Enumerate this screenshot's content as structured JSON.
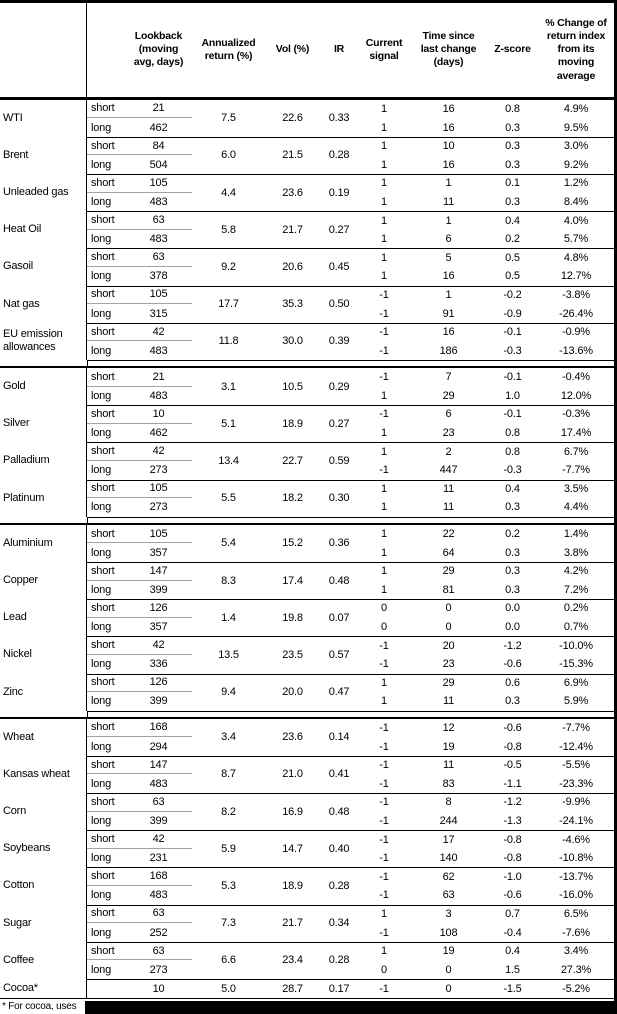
{
  "colors": {
    "rule": "#000000",
    "sub_rule": "#a3a3a3",
    "redaction_bar": "#000000",
    "text": "#000000",
    "background": "#ffffff"
  },
  "table": {
    "columns": [
      {
        "id": "lookback",
        "label": "Lookback\n(moving\navg, days)"
      },
      {
        "id": "annualized",
        "label": "Annualized\nreturn (%)"
      },
      {
        "id": "vol",
        "label": "Vol (%)"
      },
      {
        "id": "ir",
        "label": "IR"
      },
      {
        "id": "signal",
        "label": "Current\nsignal"
      },
      {
        "id": "time_since",
        "label": "Time since\nlast change\n(days)"
      },
      {
        "id": "z_score",
        "label": "Z-score"
      },
      {
        "id": "pct_change",
        "label": "% Change of\nreturn index\nfrom its\nmoving\naverage"
      }
    ],
    "sections": [
      {
        "name": "energy",
        "groups": [
          {
            "name": "WTI",
            "annualized": "7.5",
            "vol": "22.6",
            "ir": "0.33",
            "rows": [
              {
                "label": "short",
                "lookback": "21",
                "signal": "1",
                "time_since": "16",
                "z_score": "0.8",
                "pct_change": "4.9%"
              },
              {
                "label": "long",
                "lookback": "462",
                "signal": "1",
                "time_since": "16",
                "z_score": "0.3",
                "pct_change": "9.5%"
              }
            ]
          },
          {
            "name": "Brent",
            "annualized": "6.0",
            "vol": "21.5",
            "ir": "0.28",
            "rows": [
              {
                "label": "short",
                "lookback": "84",
                "signal": "1",
                "time_since": "10",
                "z_score": "0.3",
                "pct_change": "3.0%"
              },
              {
                "label": "long",
                "lookback": "504",
                "signal": "1",
                "time_since": "16",
                "z_score": "0.3",
                "pct_change": "9.2%"
              }
            ]
          },
          {
            "name": "Unleaded gas",
            "annualized": "4.4",
            "vol": "23.6",
            "ir": "0.19",
            "rows": [
              {
                "label": "short",
                "lookback": "105",
                "signal": "1",
                "time_since": "1",
                "z_score": "0.1",
                "pct_change": "1.2%"
              },
              {
                "label": "long",
                "lookback": "483",
                "signal": "1",
                "time_since": "11",
                "z_score": "0.3",
                "pct_change": "8.4%"
              }
            ]
          },
          {
            "name": "Heat Oil",
            "annualized": "5.8",
            "vol": "21.7",
            "ir": "0.27",
            "rows": [
              {
                "label": "short",
                "lookback": "63",
                "signal": "1",
                "time_since": "1",
                "z_score": "0.4",
                "pct_change": "4.0%"
              },
              {
                "label": "long",
                "lookback": "483",
                "signal": "1",
                "time_since": "6",
                "z_score": "0.2",
                "pct_change": "5.7%"
              }
            ]
          },
          {
            "name": "Gasoil",
            "annualized": "9.2",
            "vol": "20.6",
            "ir": "0.45",
            "rows": [
              {
                "label": "short",
                "lookback": "63",
                "signal": "1",
                "time_since": "5",
                "z_score": "0.5",
                "pct_change": "4.8%"
              },
              {
                "label": "long",
                "lookback": "378",
                "signal": "1",
                "time_since": "16",
                "z_score": "0.5",
                "pct_change": "12.7%"
              }
            ]
          },
          {
            "name": "Nat gas",
            "annualized": "17.7",
            "vol": "35.3",
            "ir": "0.50",
            "rows": [
              {
                "label": "short",
                "lookback": "105",
                "signal": "-1",
                "time_since": "1",
                "z_score": "-0.2",
                "pct_change": "-3.8%"
              },
              {
                "label": "long",
                "lookback": "315",
                "signal": "-1",
                "time_since": "91",
                "z_score": "-0.9",
                "pct_change": "-26.4%"
              }
            ]
          },
          {
            "name": "EU emission allowances",
            "annualized": "11.8",
            "vol": "30.0",
            "ir": "0.39",
            "rows": [
              {
                "label": "short",
                "lookback": "42",
                "signal": "-1",
                "time_since": "16",
                "z_score": "-0.1",
                "pct_change": "-0.9%"
              },
              {
                "label": "long",
                "lookback": "483",
                "signal": "-1",
                "time_since": "186",
                "z_score": "-0.3",
                "pct_change": "-13.6%"
              }
            ]
          }
        ]
      },
      {
        "name": "precious-metals",
        "groups": [
          {
            "name": "Gold",
            "annualized": "3.1",
            "vol": "10.5",
            "ir": "0.29",
            "rows": [
              {
                "label": "short",
                "lookback": "21",
                "signal": "-1",
                "time_since": "7",
                "z_score": "-0.1",
                "pct_change": "-0.4%"
              },
              {
                "label": "long",
                "lookback": "483",
                "signal": "1",
                "time_since": "29",
                "z_score": "1.0",
                "pct_change": "12.0%"
              }
            ]
          },
          {
            "name": "Silver",
            "annualized": "5.1",
            "vol": "18.9",
            "ir": "0.27",
            "rows": [
              {
                "label": "short",
                "lookback": "10",
                "signal": "-1",
                "time_since": "6",
                "z_score": "-0.1",
                "pct_change": "-0.3%"
              },
              {
                "label": "long",
                "lookback": "462",
                "signal": "1",
                "time_since": "23",
                "z_score": "0.8",
                "pct_change": "17.4%"
              }
            ]
          },
          {
            "name": "Palladium",
            "annualized": "13.4",
            "vol": "22.7",
            "ir": "0.59",
            "rows": [
              {
                "label": "short",
                "lookback": "42",
                "signal": "1",
                "time_since": "2",
                "z_score": "0.8",
                "pct_change": "6.7%"
              },
              {
                "label": "long",
                "lookback": "273",
                "signal": "-1",
                "time_since": "447",
                "z_score": "-0.3",
                "pct_change": "-7.7%"
              }
            ]
          },
          {
            "name": "Platinum",
            "annualized": "5.5",
            "vol": "18.2",
            "ir": "0.30",
            "rows": [
              {
                "label": "short",
                "lookback": "105",
                "signal": "1",
                "time_since": "11",
                "z_score": "0.4",
                "pct_change": "3.5%"
              },
              {
                "label": "long",
                "lookback": "273",
                "signal": "1",
                "time_since": "11",
                "z_score": "0.3",
                "pct_change": "4.4%"
              }
            ]
          }
        ]
      },
      {
        "name": "base-metals",
        "groups": [
          {
            "name": "Aluminium",
            "annualized": "5.4",
            "vol": "15.2",
            "ir": "0.36",
            "rows": [
              {
                "label": "short",
                "lookback": "105",
                "signal": "1",
                "time_since": "22",
                "z_score": "0.2",
                "pct_change": "1.4%"
              },
              {
                "label": "long",
                "lookback": "357",
                "signal": "1",
                "time_since": "64",
                "z_score": "0.3",
                "pct_change": "3.8%"
              }
            ]
          },
          {
            "name": "Copper",
            "annualized": "8.3",
            "vol": "17.4",
            "ir": "0.48",
            "rows": [
              {
                "label": "short",
                "lookback": "147",
                "signal": "1",
                "time_since": "29",
                "z_score": "0.3",
                "pct_change": "4.2%"
              },
              {
                "label": "long",
                "lookback": "399",
                "signal": "1",
                "time_since": "81",
                "z_score": "0.3",
                "pct_change": "7.2%"
              }
            ]
          },
          {
            "name": "Lead",
            "annualized": "1.4",
            "vol": "19.8",
            "ir": "0.07",
            "rows": [
              {
                "label": "short",
                "lookback": "126",
                "signal": "0",
                "time_since": "0",
                "z_score": "0.0",
                "pct_change": "0.2%"
              },
              {
                "label": "long",
                "lookback": "357",
                "signal": "0",
                "time_since": "0",
                "z_score": "0.0",
                "pct_change": "0.7%"
              }
            ]
          },
          {
            "name": "Nickel",
            "annualized": "13.5",
            "vol": "23.5",
            "ir": "0.57",
            "rows": [
              {
                "label": "short",
                "lookback": "42",
                "signal": "-1",
                "time_since": "20",
                "z_score": "-1.2",
                "pct_change": "-10.0%"
              },
              {
                "label": "long",
                "lookback": "336",
                "signal": "-1",
                "time_since": "23",
                "z_score": "-0.6",
                "pct_change": "-15.3%"
              }
            ]
          },
          {
            "name": "Zinc",
            "annualized": "9.4",
            "vol": "20.0",
            "ir": "0.47",
            "rows": [
              {
                "label": "short",
                "lookback": "126",
                "signal": "1",
                "time_since": "29",
                "z_score": "0.6",
                "pct_change": "6.9%"
              },
              {
                "label": "long",
                "lookback": "399",
                "signal": "1",
                "time_since": "11",
                "z_score": "0.3",
                "pct_change": "5.9%"
              }
            ]
          }
        ]
      },
      {
        "name": "agriculture",
        "groups": [
          {
            "name": "Wheat",
            "annualized": "3.4",
            "vol": "23.6",
            "ir": "0.14",
            "rows": [
              {
                "label": "short",
                "lookback": "168",
                "signal": "-1",
                "time_since": "12",
                "z_score": "-0.6",
                "pct_change": "-7.7%"
              },
              {
                "label": "long",
                "lookback": "294",
                "signal": "-1",
                "time_since": "19",
                "z_score": "-0.8",
                "pct_change": "-12.4%"
              }
            ]
          },
          {
            "name": "Kansas wheat",
            "annualized": "8.7",
            "vol": "21.0",
            "ir": "0.41",
            "rows": [
              {
                "label": "short",
                "lookback": "147",
                "signal": "-1",
                "time_since": "11",
                "z_score": "-0.5",
                "pct_change": "-5.5%"
              },
              {
                "label": "long",
                "lookback": "483",
                "signal": "-1",
                "time_since": "83",
                "z_score": "-1.1",
                "pct_change": "-23.3%"
              }
            ]
          },
          {
            "name": "Corn",
            "annualized": "8.2",
            "vol": "16.9",
            "ir": "0.48",
            "rows": [
              {
                "label": "short",
                "lookback": "63",
                "signal": "-1",
                "time_since": "8",
                "z_score": "-1.2",
                "pct_change": "-9.9%"
              },
              {
                "label": "long",
                "lookback": "399",
                "signal": "-1",
                "time_since": "244",
                "z_score": "-1.3",
                "pct_change": "-24.1%"
              }
            ]
          },
          {
            "name": "Soybeans",
            "annualized": "5.9",
            "vol": "14.7",
            "ir": "0.40",
            "rows": [
              {
                "label": "short",
                "lookback": "42",
                "signal": "-1",
                "time_since": "17",
                "z_score": "-0.8",
                "pct_change": "-4.6%"
              },
              {
                "label": "long",
                "lookback": "231",
                "signal": "-1",
                "time_since": "140",
                "z_score": "-0.8",
                "pct_change": "-10.8%"
              }
            ]
          },
          {
            "name": "Cotton",
            "annualized": "5.3",
            "vol": "18.9",
            "ir": "0.28",
            "rows": [
              {
                "label": "short",
                "lookback": "168",
                "signal": "-1",
                "time_since": "62",
                "z_score": "-1.0",
                "pct_change": "-13.7%"
              },
              {
                "label": "long",
                "lookback": "483",
                "signal": "-1",
                "time_since": "63",
                "z_score": "-0.6",
                "pct_change": "-16.0%"
              }
            ]
          },
          {
            "name": "Sugar",
            "annualized": "7.3",
            "vol": "21.7",
            "ir": "0.34",
            "rows": [
              {
                "label": "short",
                "lookback": "63",
                "signal": "1",
                "time_since": "3",
                "z_score": "0.7",
                "pct_change": "6.5%"
              },
              {
                "label": "long",
                "lookback": "252",
                "signal": "-1",
                "time_since": "108",
                "z_score": "-0.4",
                "pct_change": "-7.6%"
              }
            ]
          },
          {
            "name": "Coffee",
            "annualized": "6.6",
            "vol": "23.4",
            "ir": "0.28",
            "rows": [
              {
                "label": "short",
                "lookback": "63",
                "signal": "1",
                "time_since": "19",
                "z_score": "0.4",
                "pct_change": "3.4%"
              },
              {
                "label": "long",
                "lookback": "273",
                "signal": "0",
                "time_since": "0",
                "z_score": "1.5",
                "pct_change": "27.3%"
              }
            ]
          },
          {
            "name": "Cocoa*",
            "annualized": "5.0",
            "vol": "28.7",
            "ir": "0.17",
            "rows": [
              {
                "label": "",
                "lookback": "10",
                "signal": "-1",
                "time_since": "0",
                "z_score": "-1.5",
                "pct_change": "-5.2%"
              }
            ]
          }
        ]
      }
    ]
  },
  "footnote": "* For cocoa, uses"
}
